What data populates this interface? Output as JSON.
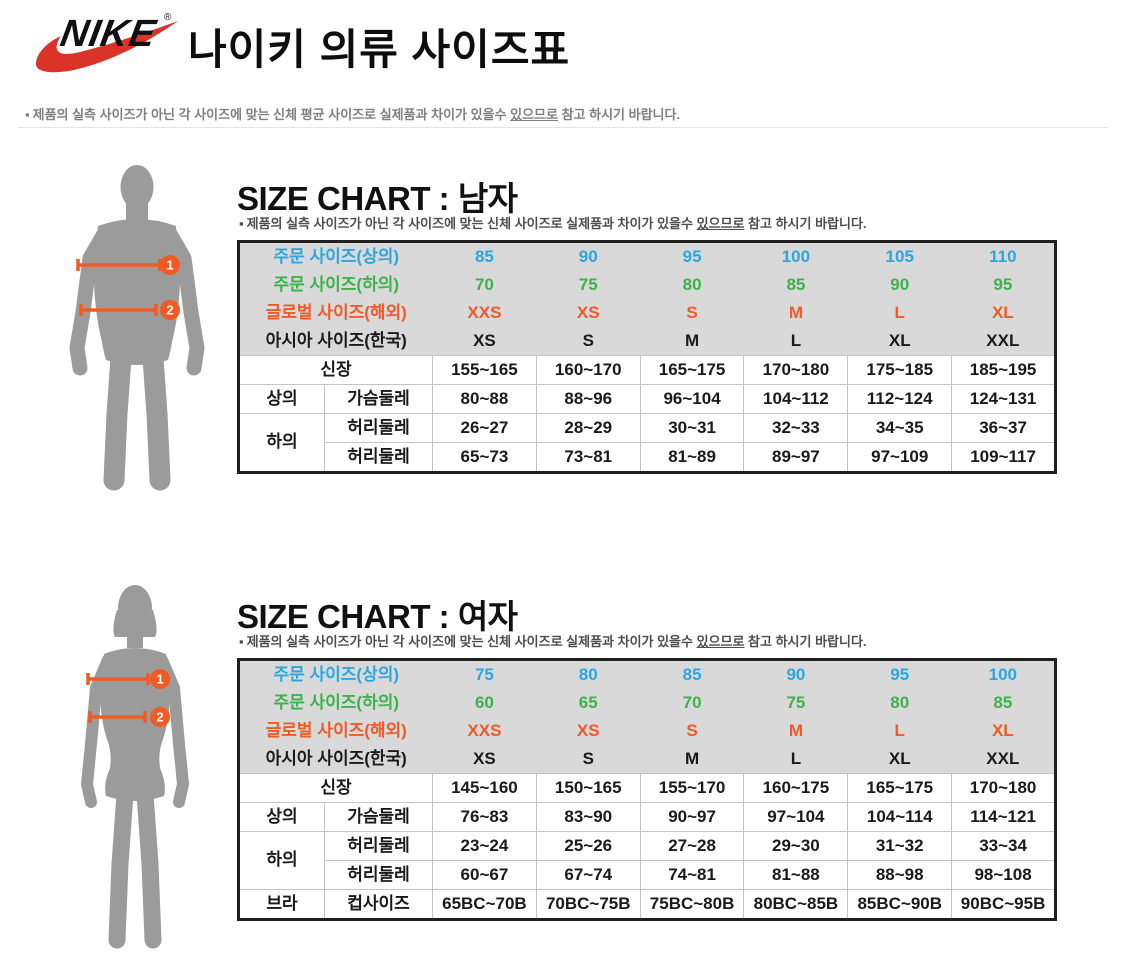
{
  "page": {
    "title": "나이키 의류 사이즈표",
    "bullet": "▪",
    "top_note_parts": [
      "제품의 실측 사이즈가 아닌 각 사이즈에 맞는 신체 평균 사이즈로 실제품과 차이가 있을수 ",
      "있으므로",
      " 참고 하시기 바랍니다."
    ]
  },
  "brand": {
    "name": "NIKE",
    "registered": "®"
  },
  "colors": {
    "blue": "#2BA7DF",
    "green": "#3BB24A",
    "orange": "#F05A28",
    "black": "#1A1A1A",
    "header_bg": "#D9D9D9",
    "grid": "#C4C4C4",
    "frame": "#1F1F1F",
    "silhouette": "#9B9B9B",
    "marker_orange": "#F15A24",
    "nike_red": "#DB3327"
  },
  "men": {
    "title": "SIZE CHART : 남자",
    "note_parts": [
      "제품의 실측 사이즈가 아닌 각 사이즈에 맞는 신체 사이즈로 실제품과 차이가 있을수 ",
      "있으므로",
      " 참고 하시기 바랍니다."
    ],
    "figure": {
      "markers": [
        "1",
        "2"
      ]
    },
    "table": {
      "header_rows": [
        {
          "label": "주문 사이즈(상의)",
          "color_key": "blue",
          "values": [
            "85",
            "90",
            "95",
            "100",
            "105",
            "110"
          ]
        },
        {
          "label": "주문 사이즈(하의)",
          "color_key": "green",
          "values": [
            "70",
            "75",
            "80",
            "85",
            "90",
            "95"
          ]
        },
        {
          "label": "글로벌 사이즈(해외)",
          "color_key": "orange",
          "values": [
            "XXS",
            "XS",
            "S",
            "M",
            "L",
            "XL"
          ]
        },
        {
          "label": "아시아 사이즈(한국)",
          "color_key": "black",
          "values": [
            "XS",
            "S",
            "M",
            "L",
            "XL",
            "XXL"
          ]
        }
      ],
      "rows": [
        {
          "type": "span",
          "label": "신장",
          "values": [
            "155~165",
            "160~170",
            "165~175",
            "170~180",
            "175~185",
            "185~195"
          ]
        },
        {
          "type": "pair",
          "group": "상의",
          "group_rowspan": 1,
          "measure": "가슴둘레",
          "values": [
            "80~88",
            "88~96",
            "96~104",
            "104~112",
            "112~124",
            "124~131"
          ]
        },
        {
          "type": "pair",
          "group": "하의",
          "group_rowspan": 2,
          "measure": "허리둘레",
          "values": [
            "26~27",
            "28~29",
            "30~31",
            "32~33",
            "34~35",
            "36~37"
          ]
        },
        {
          "type": "cont",
          "measure": "허리둘레",
          "values": [
            "65~73",
            "73~81",
            "81~89",
            "89~97",
            "97~109",
            "109~117"
          ]
        }
      ]
    }
  },
  "women": {
    "title": "SIZE CHART : 여자",
    "note_parts": [
      "제품의 실측 사이즈가 아닌 각 사이즈에 맞는 신체 사이즈로 실제품과 차이가 있을수 ",
      "있으므로",
      " 참고 하시기 바랍니다."
    ],
    "figure": {
      "markers": [
        "1",
        "2"
      ]
    },
    "table": {
      "header_rows": [
        {
          "label": "주문 사이즈(상의)",
          "color_key": "blue",
          "values": [
            "75",
            "80",
            "85",
            "90",
            "95",
            "100"
          ]
        },
        {
          "label": "주문 사이즈(하의)",
          "color_key": "green",
          "values": [
            "60",
            "65",
            "70",
            "75",
            "80",
            "85"
          ]
        },
        {
          "label": "글로벌 사이즈(해외)",
          "color_key": "orange",
          "values": [
            "XXS",
            "XS",
            "S",
            "M",
            "L",
            "XL"
          ]
        },
        {
          "label": "아시아 사이즈(한국)",
          "color_key": "black",
          "values": [
            "XS",
            "S",
            "M",
            "L",
            "XL",
            "XXL"
          ]
        }
      ],
      "rows": [
        {
          "type": "span",
          "label": "신장",
          "values": [
            "145~160",
            "150~165",
            "155~170",
            "160~175",
            "165~175",
            "170~180"
          ]
        },
        {
          "type": "pair",
          "group": "상의",
          "group_rowspan": 1,
          "measure": "가슴둘레",
          "values": [
            "76~83",
            "83~90",
            "90~97",
            "97~104",
            "104~114",
            "114~121"
          ]
        },
        {
          "type": "pair",
          "group": "하의",
          "group_rowspan": 2,
          "measure": "허리둘레",
          "values": [
            "23~24",
            "25~26",
            "27~28",
            "29~30",
            "31~32",
            "33~34"
          ]
        },
        {
          "type": "cont",
          "measure": "허리둘레",
          "values": [
            "60~67",
            "67~74",
            "74~81",
            "81~88",
            "88~98",
            "98~108"
          ]
        },
        {
          "type": "pair",
          "group": "브라",
          "group_rowspan": 1,
          "measure": "컵사이즈",
          "values": [
            "65BC~70B",
            "70BC~75B",
            "75BC~80B",
            "80BC~85B",
            "85BC~90B",
            "90BC~95B"
          ]
        }
      ]
    }
  }
}
